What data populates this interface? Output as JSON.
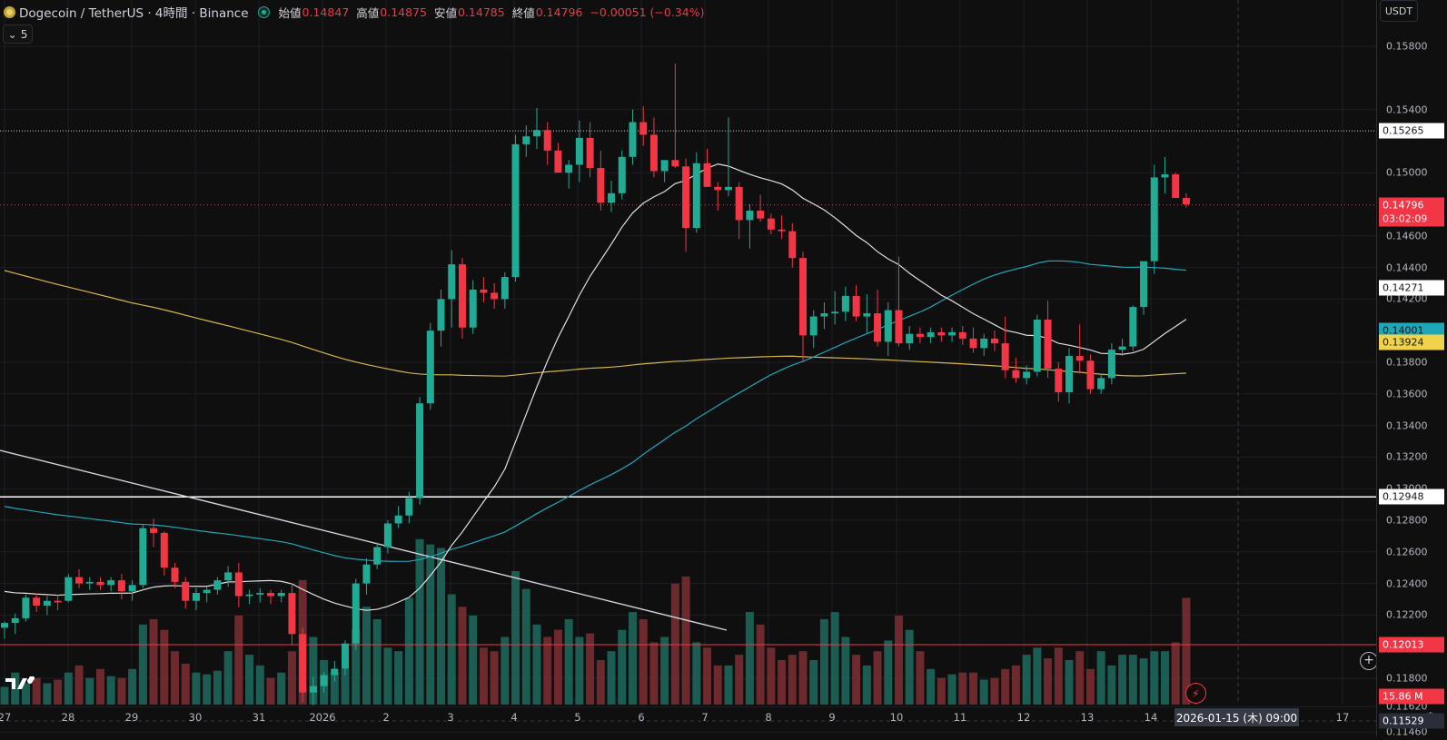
{
  "header": {
    "symbol": "Dogecoin / TetherUS · 4時間 · Binance",
    "ohlc": [
      {
        "label": "始値",
        "value": "0.14847"
      },
      {
        "label": "高値",
        "value": "0.14875"
      },
      {
        "label": "安値",
        "value": "0.14785"
      },
      {
        "label": "終値",
        "value": "0.14796"
      }
    ],
    "change": "−0.00051 (−0.34%)",
    "collapse_count": "5"
  },
  "axis": {
    "currency": "USDT",
    "ticks": [
      "0.15800",
      "0.15400",
      "0.15000",
      "0.14600",
      "0.14400",
      "0.14200",
      "0.13800",
      "0.13600",
      "0.13400",
      "0.13200",
      "0.13000",
      "0.12800",
      "0.12600",
      "0.12400",
      "0.12200",
      "0.11800",
      "0.11620",
      "0.11460"
    ],
    "labels": [
      {
        "name": "price-level-top",
        "value": "0.15265",
        "bg": "#ffffff",
        "fg": "#131722"
      },
      {
        "name": "last-price",
        "value": "0.14796",
        "bg": "#f23645",
        "fg": "#ffffff"
      },
      {
        "name": "countdown",
        "value": "03:02:09",
        "bg": "#f23645",
        "fg": "#ffffff"
      },
      {
        "name": "ma-white",
        "value": "0.14271",
        "bg": "#ffffff",
        "fg": "#131722"
      },
      {
        "name": "ma-cyan",
        "value": "0.14001",
        "bg": "#1ea7b8",
        "fg": "#131722"
      },
      {
        "name": "ma-yellow",
        "value": "0.13924",
        "bg": "#f0d34a",
        "fg": "#131722"
      },
      {
        "name": "support-white",
        "value": "0.12948",
        "bg": "#ffffff",
        "fg": "#131722"
      },
      {
        "name": "support-red",
        "value": "0.12013",
        "bg": "#f23645",
        "fg": "#ffffff"
      },
      {
        "name": "crosshair",
        "value": "0.11529",
        "bg": "#2a2e39",
        "fg": "#ffffff"
      },
      {
        "name": "volume",
        "value": "15.86 M",
        "bg": "#f23645",
        "fg": "#ffffff"
      }
    ]
  },
  "xaxis": {
    "labels": [
      "27",
      "28",
      "29",
      "30",
      "31",
      "2026",
      "2",
      "3",
      "4",
      "5",
      "6",
      "7",
      "8",
      "9",
      "10",
      "11",
      "12",
      "13",
      "14",
      "17"
    ],
    "crosshair_date": "2026-01-15 (木)   09:00"
  },
  "colors": {
    "up": "#22ab94",
    "down": "#f23645",
    "background": "#0f0f0f"
  },
  "chart_data": {
    "type": "candlestick",
    "interval": "4時間",
    "candles_ohlc": [
      [
        0.1212,
        0.1216,
        0.1205,
        0.1215
      ],
      [
        0.1215,
        0.1221,
        0.1208,
        0.1218
      ],
      [
        0.1218,
        0.1233,
        0.1216,
        0.1231
      ],
      [
        0.1231,
        0.1234,
        0.1222,
        0.1226
      ],
      [
        0.1226,
        0.1232,
        0.122,
        0.1229
      ],
      [
        0.1229,
        0.1233,
        0.1223,
        0.1228
      ],
      [
        0.1229,
        0.1246,
        0.1228,
        0.1244
      ],
      [
        0.1244,
        0.1249,
        0.1237,
        0.124
      ],
      [
        0.124,
        0.1244,
        0.1236,
        0.1241
      ],
      [
        0.1241,
        0.1244,
        0.1236,
        0.1239
      ],
      [
        0.1239,
        0.1244,
        0.1235,
        0.1242
      ],
      [
        0.1242,
        0.1246,
        0.123,
        0.1235
      ],
      [
        0.1235,
        0.1242,
        0.1229,
        0.1239
      ],
      [
        0.1239,
        0.1277,
        0.1237,
        0.1275
      ],
      [
        0.1275,
        0.1281,
        0.1263,
        0.1272
      ],
      [
        0.1272,
        0.1273,
        0.1245,
        0.125
      ],
      [
        0.125,
        0.1253,
        0.1237,
        0.1241
      ],
      [
        0.1241,
        0.1244,
        0.1224,
        0.1229
      ],
      [
        0.1229,
        0.1237,
        0.1223,
        0.1234
      ],
      [
        0.1234,
        0.1238,
        0.1228,
        0.1236
      ],
      [
        0.1236,
        0.1244,
        0.1233,
        0.1242
      ],
      [
        0.1242,
        0.1251,
        0.1238,
        0.1247
      ],
      [
        0.1247,
        0.1253,
        0.1225,
        0.1232
      ],
      [
        0.1232,
        0.1236,
        0.1227,
        0.1233
      ],
      [
        0.1233,
        0.1237,
        0.1228,
        0.1234
      ],
      [
        0.1234,
        0.1236,
        0.1227,
        0.1232
      ],
      [
        0.1232,
        0.1236,
        0.1228,
        0.1234
      ],
      [
        0.1234,
        0.124,
        0.1201,
        0.1208
      ],
      [
        0.1208,
        0.1212,
        0.1165,
        0.1171
      ],
      [
        0.1171,
        0.1181,
        0.1163,
        0.1175
      ],
      [
        0.1175,
        0.1184,
        0.1171,
        0.1182
      ],
      [
        0.1182,
        0.1191,
        0.1178,
        0.1186
      ],
      [
        0.1186,
        0.1204,
        0.1182,
        0.1202
      ],
      [
        0.1202,
        0.1243,
        0.1198,
        0.124
      ],
      [
        0.124,
        0.1256,
        0.1233,
        0.1252
      ],
      [
        0.1252,
        0.1266,
        0.1249,
        0.1263
      ],
      [
        0.1263,
        0.128,
        0.1259,
        0.1278
      ],
      [
        0.1278,
        0.1289,
        0.1275,
        0.1283
      ],
      [
        0.1283,
        0.1298,
        0.1278,
        0.1294
      ],
      [
        0.1294,
        0.1358,
        0.129,
        0.1354
      ],
      [
        0.1354,
        0.1405,
        0.135,
        0.14
      ],
      [
        0.14,
        0.1426,
        0.139,
        0.142
      ],
      [
        0.142,
        0.1451,
        0.1402,
        0.1442
      ],
      [
        0.1442,
        0.1446,
        0.1395,
        0.1402
      ],
      [
        0.1402,
        0.1432,
        0.1398,
        0.1426
      ],
      [
        0.1426,
        0.1434,
        0.1418,
        0.1424
      ],
      [
        0.1424,
        0.143,
        0.1414,
        0.142
      ],
      [
        0.142,
        0.1437,
        0.1414,
        0.1434
      ],
      [
        0.1434,
        0.1524,
        0.1431,
        0.1518
      ],
      [
        0.1518,
        0.153,
        0.151,
        0.1523
      ],
      [
        0.1523,
        0.1541,
        0.1515,
        0.1527
      ],
      [
        0.1527,
        0.1532,
        0.1505,
        0.1514
      ],
      [
        0.1514,
        0.1519,
        0.15,
        0.15
      ],
      [
        0.15,
        0.1508,
        0.149,
        0.1505
      ],
      [
        0.1505,
        0.1533,
        0.1494,
        0.1522
      ],
      [
        0.1522,
        0.1532,
        0.1497,
        0.1503
      ],
      [
        0.1503,
        0.1514,
        0.1476,
        0.1481
      ],
      [
        0.1481,
        0.1495,
        0.1475,
        0.1487
      ],
      [
        0.1487,
        0.1514,
        0.1483,
        0.151
      ],
      [
        0.151,
        0.154,
        0.1505,
        0.1532
      ],
      [
        0.1532,
        0.1542,
        0.1517,
        0.1524
      ],
      [
        0.1524,
        0.1535,
        0.1497,
        0.1501
      ],
      [
        0.1501,
        0.1507,
        0.1494,
        0.1508
      ],
      [
        0.1508,
        0.1569,
        0.1503,
        0.1504
      ],
      [
        0.1504,
        0.1509,
        0.145,
        0.1465
      ],
      [
        0.1465,
        0.1513,
        0.1462,
        0.1506
      ],
      [
        0.1506,
        0.1515,
        0.1491,
        0.1491
      ],
      [
        0.1491,
        0.1494,
        0.1476,
        0.1489
      ],
      [
        0.1489,
        0.1535,
        0.1485,
        0.1491
      ],
      [
        0.1491,
        0.1494,
        0.1458,
        0.147
      ],
      [
        0.147,
        0.148,
        0.1452,
        0.1476
      ],
      [
        0.1476,
        0.1486,
        0.1469,
        0.1471
      ],
      [
        0.1471,
        0.1474,
        0.1461,
        0.1464
      ],
      [
        0.1464,
        0.1473,
        0.1458,
        0.1463
      ],
      [
        0.1463,
        0.1468,
        0.144,
        0.1446
      ],
      [
        0.1446,
        0.145,
        0.138,
        0.1397
      ],
      [
        0.1397,
        0.1413,
        0.1389,
        0.1409
      ],
      [
        0.1409,
        0.1418,
        0.1401,
        0.1411
      ],
      [
        0.1411,
        0.1425,
        0.1404,
        0.1412
      ],
      [
        0.1412,
        0.1428,
        0.1406,
        0.1422
      ],
      [
        0.1422,
        0.1429,
        0.1406,
        0.1409
      ],
      [
        0.1409,
        0.1423,
        0.1398,
        0.1411
      ],
      [
        0.1411,
        0.1426,
        0.139,
        0.1393
      ],
      [
        0.1393,
        0.1418,
        0.1384,
        0.1413
      ],
      [
        0.1413,
        0.1447,
        0.139,
        0.1392
      ],
      [
        0.1392,
        0.1403,
        0.1388,
        0.1398
      ],
      [
        0.1398,
        0.1402,
        0.1392,
        0.1396
      ],
      [
        0.1396,
        0.1402,
        0.1392,
        0.1399
      ],
      [
        0.1399,
        0.1402,
        0.1393,
        0.1397
      ],
      [
        0.1397,
        0.1402,
        0.1393,
        0.1399
      ],
      [
        0.1399,
        0.1403,
        0.1391,
        0.1395
      ],
      [
        0.1395,
        0.1402,
        0.1386,
        0.1389
      ],
      [
        0.1389,
        0.1398,
        0.1384,
        0.1395
      ],
      [
        0.1395,
        0.14,
        0.1387,
        0.1392
      ],
      [
        0.1392,
        0.1409,
        0.137,
        0.1375
      ],
      [
        0.1375,
        0.1383,
        0.1367,
        0.137
      ],
      [
        0.137,
        0.1378,
        0.1366,
        0.1374
      ],
      [
        0.1374,
        0.141,
        0.1371,
        0.1407
      ],
      [
        0.1407,
        0.1419,
        0.137,
        0.1376
      ],
      [
        0.1376,
        0.138,
        0.1355,
        0.1361
      ],
      [
        0.1361,
        0.1389,
        0.1354,
        0.1384
      ],
      [
        0.1384,
        0.1404,
        0.1373,
        0.1381
      ],
      [
        0.1381,
        0.1385,
        0.136,
        0.1363
      ],
      [
        0.1363,
        0.1372,
        0.136,
        0.137
      ],
      [
        0.137,
        0.1392,
        0.1366,
        0.1388
      ],
      [
        0.1388,
        0.1395,
        0.1384,
        0.139
      ],
      [
        0.139,
        0.1416,
        0.1387,
        0.1415
      ],
      [
        0.1415,
        0.144,
        0.141,
        0.1444
      ],
      [
        0.1444,
        0.1505,
        0.1436,
        0.1497
      ],
      [
        0.1497,
        0.151,
        0.1487,
        0.1499
      ],
      [
        0.1499,
        0.15,
        0.1484,
        0.1484
      ],
      [
        0.1484,
        0.1487,
        0.1478,
        0.148
      ]
    ],
    "volume_relative": [
      0.1,
      0.18,
      0.12,
      0.15,
      0.12,
      0.14,
      0.18,
      0.22,
      0.15,
      0.2,
      0.16,
      0.15,
      0.2,
      0.45,
      0.48,
      0.42,
      0.3,
      0.23,
      0.18,
      0.17,
      0.19,
      0.3,
      0.5,
      0.28,
      0.22,
      0.15,
      0.18,
      0.3,
      0.7,
      0.38,
      0.25,
      0.18,
      0.2,
      0.42,
      0.55,
      0.48,
      0.32,
      0.3,
      0.6,
      0.93,
      0.9,
      0.88,
      0.62,
      0.55,
      0.5,
      0.32,
      0.3,
      0.38,
      0.75,
      0.65,
      0.45,
      0.38,
      0.42,
      0.48,
      0.38,
      0.4,
      0.25,
      0.3,
      0.42,
      0.52,
      0.48,
      0.35,
      0.38,
      0.68,
      0.72,
      0.35,
      0.32,
      0.22,
      0.22,
      0.28,
      0.52,
      0.45,
      0.32,
      0.25,
      0.28,
      0.3,
      0.25,
      0.48,
      0.52,
      0.38,
      0.28,
      0.22,
      0.3,
      0.36,
      0.5,
      0.42,
      0.3,
      0.2,
      0.15,
      0.17,
      0.18,
      0.18,
      0.14,
      0.15,
      0.2,
      0.22,
      0.28,
      0.32,
      0.26,
      0.32,
      0.25,
      0.3,
      0.2,
      0.3,
      0.22,
      0.28,
      0.28,
      0.26,
      0.3,
      0.3,
      0.35,
      0.6,
      0.42,
      0.28,
      0.25
    ],
    "horizontal_levels": [
      0.15265,
      0.14796,
      0.12948,
      0.12013,
      0.11529
    ]
  }
}
